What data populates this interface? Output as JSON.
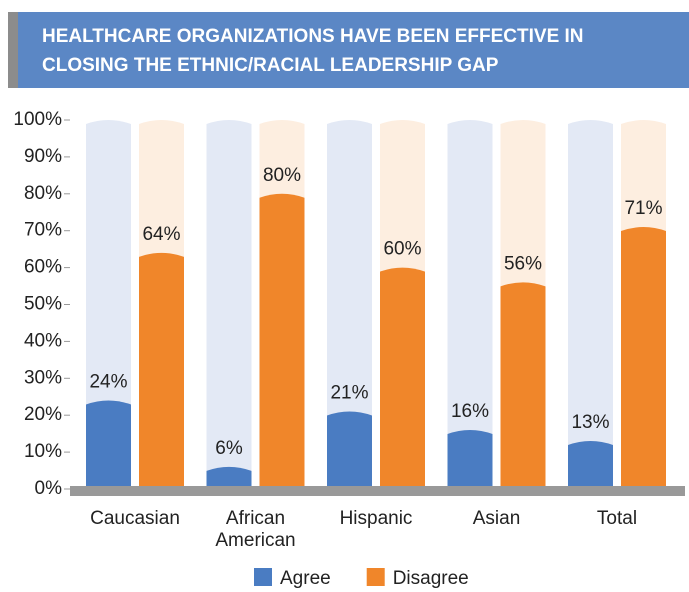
{
  "chart_data": {
    "type": "bar",
    "title": "HEALTHCARE ORGANIZATIONS HAVE BEEN EFFECTIVE IN CLOSING THE ETHNIC/RACIAL LEADERSHIP GAP",
    "categories": [
      "Caucasian",
      "African American",
      "Hispanic",
      "Asian",
      "Total"
    ],
    "series": [
      {
        "name": "Agree",
        "color": "#4a7cc2",
        "values": [
          24,
          6,
          21,
          16,
          13
        ],
        "value_labels": [
          "24%",
          "6%",
          "21%",
          "16%",
          "13%"
        ]
      },
      {
        "name": "Disagree",
        "color": "#f0862a",
        "values": [
          64,
          80,
          60,
          56,
          71
        ],
        "value_labels": [
          "64%",
          "80%",
          "60%",
          "56%",
          "71%"
        ]
      }
    ],
    "ylim": [
      0,
      100
    ],
    "yticks": [
      {
        "value": 0,
        "label": "0%"
      },
      {
        "value": 10,
        "label": "10%"
      },
      {
        "value": 20,
        "label": "20%"
      },
      {
        "value": 30,
        "label": "30%"
      },
      {
        "value": 40,
        "label": "40%"
      },
      {
        "value": 50,
        "label": "50%"
      },
      {
        "value": 60,
        "label": "60%"
      },
      {
        "value": 70,
        "label": "70%"
      },
      {
        "value": 80,
        "label": "80%"
      },
      {
        "value": 90,
        "label": "90%"
      },
      {
        "value": 100,
        "label": "100%"
      }
    ],
    "legend": "bottom"
  }
}
